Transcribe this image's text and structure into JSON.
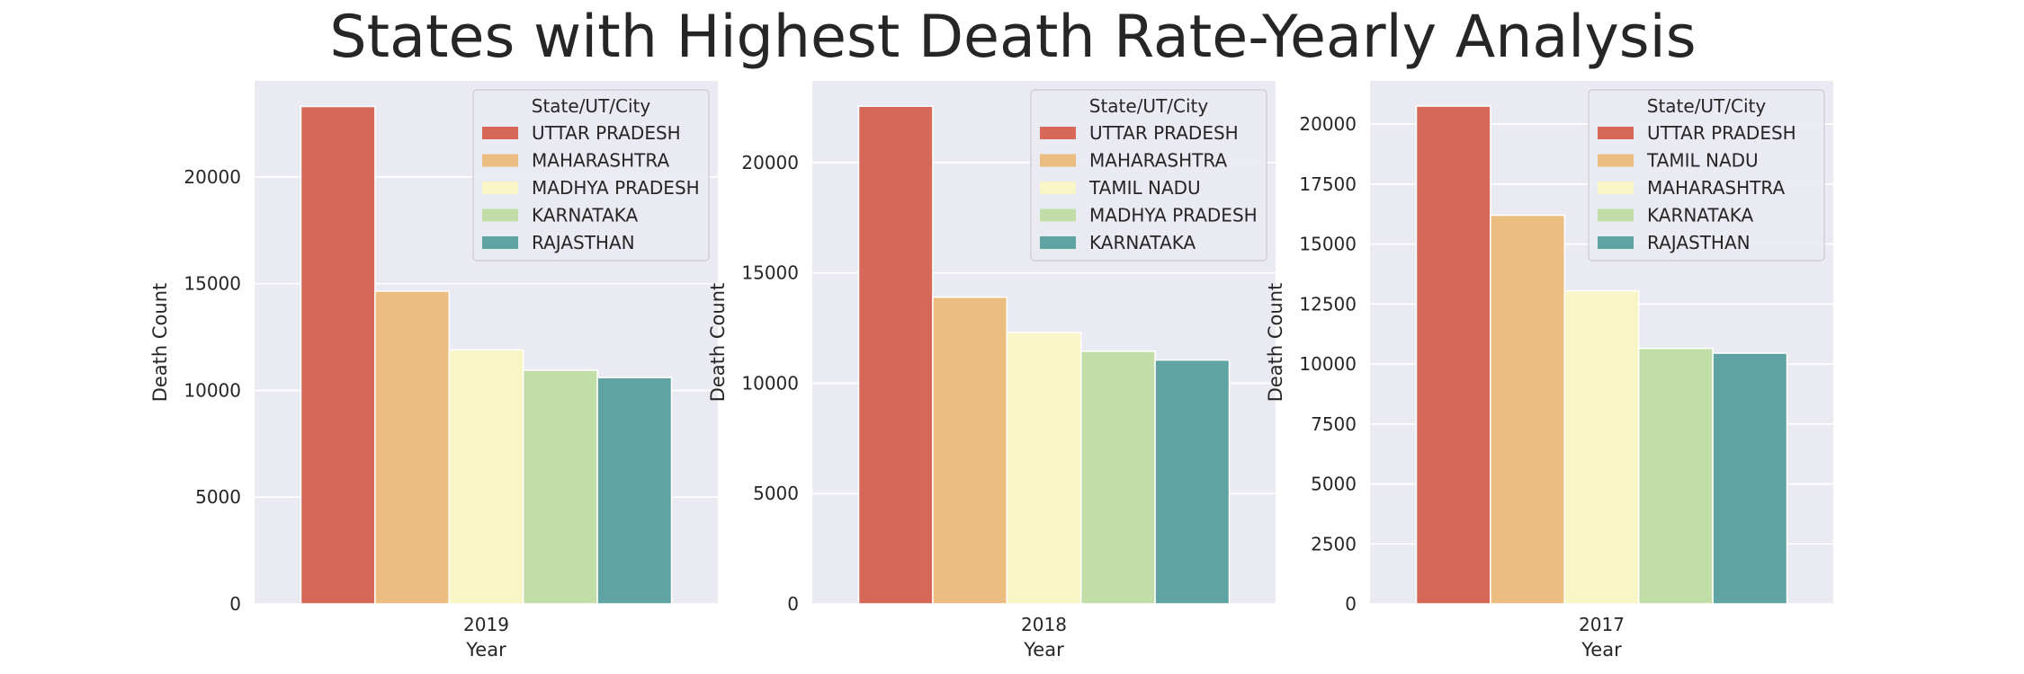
{
  "figure": {
    "title": "States with Highest Death Rate-Yearly Analysis"
  },
  "chart_data": [
    {
      "type": "bar",
      "xlabel": "Year",
      "ylabel": "Death Count",
      "categories": [
        "2019"
      ],
      "ylim": [
        0,
        24500
      ],
      "yticks": [
        0,
        5000,
        10000,
        15000,
        20000
      ],
      "legend": {
        "title": "State/UT/City",
        "placement": "top-right"
      },
      "grid": true,
      "series": [
        {
          "name": "UTTAR PRADESH",
          "values": [
            23300
          ],
          "color": "#d6685a"
        },
        {
          "name": "MAHARASHTRA",
          "values": [
            14650
          ],
          "color": "#ecbd80"
        },
        {
          "name": "MADHYA PRADESH",
          "values": [
            11900
          ],
          "color": "#f8f6c6"
        },
        {
          "name": "KARNATAKA",
          "values": [
            10950
          ],
          "color": "#c1dda8"
        },
        {
          "name": "RAJASTHAN",
          "values": [
            10600
          ],
          "color": "#5fa3a2"
        }
      ]
    },
    {
      "type": "bar",
      "xlabel": "Year",
      "ylabel": "Death Count",
      "categories": [
        "2018"
      ],
      "ylim": [
        0,
        23700
      ],
      "yticks": [
        0,
        5000,
        10000,
        15000,
        20000
      ],
      "legend": {
        "title": "State/UT/City",
        "placement": "top-right"
      },
      "grid": true,
      "series": [
        {
          "name": "UTTAR PRADESH",
          "values": [
            22550
          ],
          "color": "#d6685a"
        },
        {
          "name": "MAHARASHTRA",
          "values": [
            13900
          ],
          "color": "#ecbd80"
        },
        {
          "name": "TAMIL NADU",
          "values": [
            12300
          ],
          "color": "#f8f6c6"
        },
        {
          "name": "MADHYA PRADESH",
          "values": [
            11450
          ],
          "color": "#c1dda8"
        },
        {
          "name": "KARNATAKA",
          "values": [
            11050
          ],
          "color": "#5fa3a2"
        }
      ]
    },
    {
      "type": "bar",
      "xlabel": "Year",
      "ylabel": "Death Count",
      "categories": [
        "2017"
      ],
      "ylim": [
        0,
        21800
      ],
      "yticks": [
        0,
        2500,
        5000,
        7500,
        10000,
        12500,
        15000,
        17500,
        20000
      ],
      "legend": {
        "title": "State/UT/City",
        "placement": "top-right"
      },
      "grid": true,
      "series": [
        {
          "name": "UTTAR PRADESH",
          "values": [
            20750
          ],
          "color": "#d6685a"
        },
        {
          "name": "TAMIL NADU",
          "values": [
            16200
          ],
          "color": "#ecbd80"
        },
        {
          "name": "MAHARASHTRA",
          "values": [
            13050
          ],
          "color": "#f8f6c6"
        },
        {
          "name": "KARNATAKA",
          "values": [
            10650
          ],
          "color": "#c1dda8"
        },
        {
          "name": "RAJASTHAN",
          "values": [
            10450
          ],
          "color": "#5fa3a2"
        }
      ]
    }
  ]
}
